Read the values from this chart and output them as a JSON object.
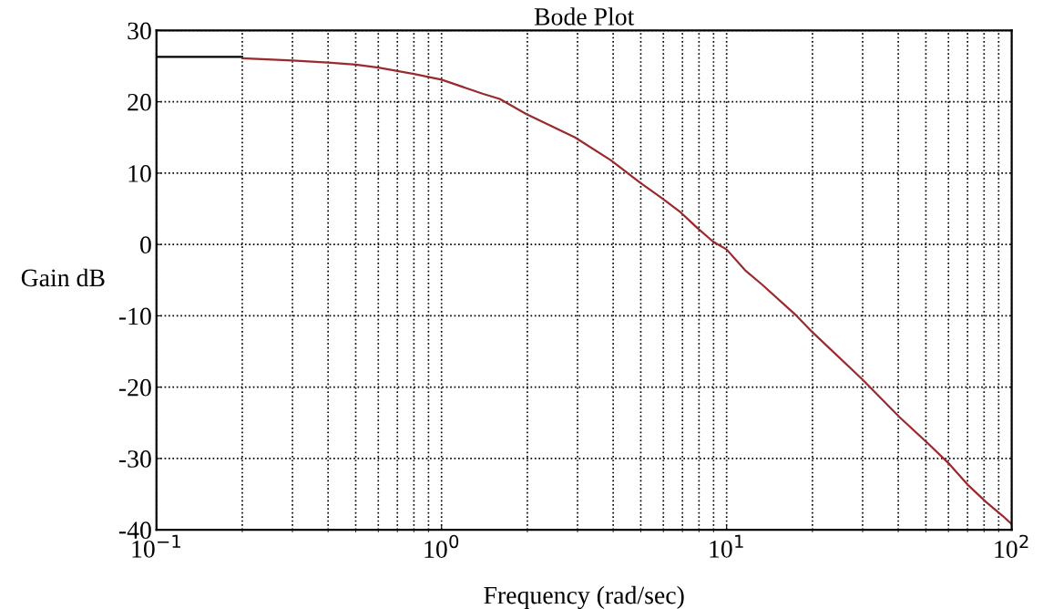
{
  "chart_data": {
    "type": "line",
    "title": "Bode Plot",
    "xlabel": "Frequency (rad/sec)",
    "ylabel": "Gain dB",
    "log": "x",
    "grid": true,
    "line_style": "solid",
    "marker": "none",
    "xlim": [
      0.1,
      100
    ],
    "xticks": [
      {
        "value": 0.1,
        "label": "10$^{−1}$"
      },
      {
        "value": 1,
        "label": "10$^{0}$"
      },
      {
        "value": 10,
        "label": "10$^{1}$"
      },
      {
        "value": 100,
        "label": "10$^{2}$"
      }
    ],
    "ylim": [
      -40,
      30
    ],
    "yticks": [
      -40,
      -30,
      -20,
      -10,
      0,
      10,
      20,
      30
    ],
    "series": [
      {
        "color": "#000000",
        "x": [
          0.1,
          0.2
        ],
        "values": [
          26.3,
          26.3
        ]
      },
      {
        "color": "#9b2a2e",
        "x": [
          0.2,
          0.3,
          0.4,
          0.5,
          0.6,
          0.8,
          1.0,
          1.4,
          1.6,
          1.98,
          2.94,
          3.93,
          4.96,
          5.93,
          6.9,
          7.9,
          8.96,
          10,
          11.6,
          13.3,
          17.6,
          20,
          29.9,
          40.4,
          51.2,
          60.5,
          70.6,
          81.3,
          93.3,
          100
        ],
        "values": [
          26.1,
          25.8,
          25.5,
          25.2,
          24.8,
          23.9,
          23.1,
          21.1,
          20.4,
          18.3,
          15.0,
          11.8,
          8.7,
          6.5,
          4.5,
          2.3,
          0.4,
          -0.7,
          -3.6,
          -5.6,
          -10.0,
          -12.3,
          -18.9,
          -24.2,
          -28.0,
          -30.8,
          -33.8,
          -36.1,
          -38.1,
          -39.2
        ]
      }
    ]
  }
}
